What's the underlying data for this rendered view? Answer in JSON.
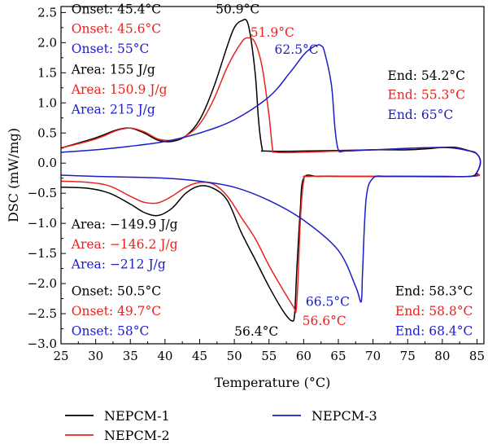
{
  "chart_data": {
    "type": "line",
    "title": "",
    "xlabel": "Temperature (°C)",
    "ylabel": "DSC (mW/mg)",
    "xlim": [
      25,
      86
    ],
    "ylim": [
      -3.0,
      2.6
    ],
    "x_ticks": [
      25,
      30,
      35,
      40,
      45,
      50,
      55,
      60,
      65,
      70,
      75,
      80,
      85
    ],
    "y_ticks": [
      -3.0,
      -2.5,
      -2.0,
      -1.5,
      -1.0,
      -0.5,
      0.0,
      0.5,
      1.0,
      1.5,
      2.0,
      2.5
    ],
    "x_tick_labels": [
      "25",
      "30",
      "35",
      "40",
      "45",
      "50",
      "55",
      "60",
      "65",
      "70",
      "75",
      "80",
      "85"
    ],
    "y_tick_labels": [
      "−3.0",
      "−2.5",
      "−2.0",
      "−1.5",
      "−1.0",
      "−0.5",
      "0.0",
      "0.5",
      "1.0",
      "1.5",
      "2.0",
      "2.5"
    ],
    "grid": false,
    "legend_position": "bottom",
    "series": [
      {
        "name": "NEPCM-1",
        "color": "#000000",
        "points": [
          [
            25,
            0.25
          ],
          [
            30,
            0.42
          ],
          [
            33,
            0.55
          ],
          [
            35,
            0.58
          ],
          [
            37,
            0.5
          ],
          [
            39,
            0.38
          ],
          [
            41,
            0.36
          ],
          [
            43,
            0.45
          ],
          [
            45,
            0.72
          ],
          [
            47,
            1.25
          ],
          [
            49,
            1.95
          ],
          [
            50,
            2.25
          ],
          [
            51,
            2.36
          ],
          [
            52,
            2.3
          ],
          [
            53,
            1.5
          ],
          [
            53.5,
            0.7
          ],
          [
            54,
            0.25
          ],
          [
            54.5,
            0.2
          ],
          [
            60,
            0.2
          ],
          [
            70,
            0.22
          ],
          [
            75,
            0.22
          ],
          [
            78,
            0.24
          ],
          [
            80,
            0.26
          ],
          [
            82,
            0.26
          ],
          [
            84,
            0.2
          ],
          [
            85,
            0.15
          ],
          [
            85.5,
            0.02
          ],
          [
            85,
            -0.15
          ],
          [
            84,
            -0.22
          ],
          [
            80,
            -0.22
          ],
          [
            70,
            -0.22
          ],
          [
            65,
            -0.22
          ],
          [
            62,
            -0.22
          ],
          [
            60,
            -0.25
          ],
          [
            59.5,
            -0.8
          ],
          [
            59,
            -1.8
          ],
          [
            58.7,
            -2.5
          ],
          [
            58.3,
            -2.62
          ],
          [
            57,
            -2.45
          ],
          [
            55,
            -2.05
          ],
          [
            53,
            -1.6
          ],
          [
            51,
            -1.15
          ],
          [
            49,
            -0.62
          ],
          [
            47,
            -0.42
          ],
          [
            45,
            -0.38
          ],
          [
            43,
            -0.5
          ],
          [
            41,
            -0.75
          ],
          [
            39,
            -0.87
          ],
          [
            37,
            -0.82
          ],
          [
            35,
            -0.68
          ],
          [
            32,
            -0.5
          ],
          [
            29,
            -0.42
          ],
          [
            25,
            -0.4
          ]
        ]
      },
      {
        "name": "NEPCM-2",
        "color": "#e8221e",
        "points": [
          [
            25,
            0.25
          ],
          [
            30,
            0.4
          ],
          [
            33,
            0.54
          ],
          [
            35,
            0.58
          ],
          [
            37,
            0.52
          ],
          [
            39,
            0.4
          ],
          [
            41,
            0.38
          ],
          [
            43,
            0.45
          ],
          [
            45,
            0.65
          ],
          [
            47,
            1.05
          ],
          [
            49,
            1.6
          ],
          [
            51,
            2.0
          ],
          [
            52,
            2.08
          ],
          [
            53,
            2.0
          ],
          [
            54,
            1.6
          ],
          [
            55,
            0.8
          ],
          [
            55.5,
            0.25
          ],
          [
            56,
            0.18
          ],
          [
            60,
            0.18
          ],
          [
            70,
            0.22
          ],
          [
            80,
            0.26
          ],
          [
            84,
            0.2
          ],
          [
            85,
            0.15
          ],
          [
            85.5,
            0.02
          ],
          [
            85,
            -0.15
          ],
          [
            84,
            -0.22
          ],
          [
            70,
            -0.22
          ],
          [
            61,
            -0.22
          ],
          [
            60,
            -0.3
          ],
          [
            59.5,
            -1.0
          ],
          [
            59.2,
            -1.9
          ],
          [
            58.9,
            -2.45
          ],
          [
            58.6,
            -2.4
          ],
          [
            57,
            -2.1
          ],
          [
            55,
            -1.7
          ],
          [
            53,
            -1.25
          ],
          [
            51,
            -0.9
          ],
          [
            49,
            -0.55
          ],
          [
            47,
            -0.35
          ],
          [
            45,
            -0.32
          ],
          [
            43,
            -0.4
          ],
          [
            41,
            -0.55
          ],
          [
            39,
            -0.66
          ],
          [
            37,
            -0.65
          ],
          [
            35,
            -0.55
          ],
          [
            32,
            -0.38
          ],
          [
            29,
            -0.32
          ],
          [
            25,
            -0.3
          ]
        ]
      },
      {
        "name": "NEPCM-3",
        "color": "#1c1cc8",
        "points": [
          [
            25,
            0.18
          ],
          [
            30,
            0.22
          ],
          [
            35,
            0.28
          ],
          [
            40,
            0.36
          ],
          [
            45,
            0.5
          ],
          [
            50,
            0.72
          ],
          [
            55,
            1.1
          ],
          [
            58,
            1.5
          ],
          [
            60,
            1.8
          ],
          [
            61,
            1.9
          ],
          [
            62,
            1.96
          ],
          [
            62.5,
            1.95
          ],
          [
            63,
            1.85
          ],
          [
            64,
            1.3
          ],
          [
            64.5,
            0.6
          ],
          [
            65,
            0.22
          ],
          [
            66,
            0.2
          ],
          [
            70,
            0.22
          ],
          [
            80,
            0.26
          ],
          [
            84,
            0.2
          ],
          [
            85,
            0.15
          ],
          [
            85.5,
            0.02
          ],
          [
            85,
            -0.15
          ],
          [
            84,
            -0.22
          ],
          [
            75,
            -0.22
          ],
          [
            72,
            -0.22
          ],
          [
            70,
            -0.25
          ],
          [
            69,
            -0.6
          ],
          [
            68.5,
            -1.8
          ],
          [
            68.3,
            -2.3
          ],
          [
            67.5,
            -2.05
          ],
          [
            65,
            -1.45
          ],
          [
            60,
            -0.95
          ],
          [
            55,
            -0.62
          ],
          [
            50,
            -0.4
          ],
          [
            45,
            -0.3
          ],
          [
            40,
            -0.25
          ],
          [
            30,
            -0.22
          ],
          [
            25,
            -0.2
          ]
        ]
      }
    ],
    "annotations": [
      {
        "text": "Onset: 45.4°C",
        "color": "#000000",
        "x": 26.5,
        "y": 2.55
      },
      {
        "text": "Onset: 45.6°C",
        "color": "#e8221e",
        "x": 26.5,
        "y": 2.23
      },
      {
        "text": "Onset: 55°C",
        "color": "#1c1cc8",
        "x": 26.5,
        "y": 1.9
      },
      {
        "text": "Area: 155 J/g",
        "color": "#000000",
        "x": 26.5,
        "y": 1.55
      },
      {
        "text": "Area: 150.9 J/g",
        "color": "#e8221e",
        "x": 26.5,
        "y": 1.22
      },
      {
        "text": "Area: 215 J/g",
        "color": "#1c1cc8",
        "x": 26.5,
        "y": 0.89
      },
      {
        "text": "50.9°C",
        "color": "#000000",
        "x": 47.3,
        "y": 2.55
      },
      {
        "text": "51.9°C",
        "color": "#e8221e",
        "x": 52.3,
        "y": 2.17
      },
      {
        "text": "62.5°C",
        "color": "#1c1cc8",
        "x": 55.8,
        "y": 1.88
      },
      {
        "text": "End: 54.2°C",
        "color": "#000000",
        "x": 72.1,
        "y": 1.45
      },
      {
        "text": "End: 55.3°C",
        "color": "#e8221e",
        "x": 72.1,
        "y": 1.13
      },
      {
        "text": "End: 65°C",
        "color": "#1c1cc8",
        "x": 72.1,
        "y": 0.8
      },
      {
        "text": "Area: −149.9 J/g",
        "color": "#000000",
        "x": 26.5,
        "y": -1.02
      },
      {
        "text": "Area: −146.2 J/g",
        "color": "#e8221e",
        "x": 26.5,
        "y": -1.35
      },
      {
        "text": "Area: −212 J/g",
        "color": "#1c1cc8",
        "x": 26.5,
        "y": -1.68
      },
      {
        "text": "Onset: 50.5°C",
        "color": "#000000",
        "x": 26.5,
        "y": -2.13
      },
      {
        "text": "Onset: 49.7°C",
        "color": "#e8221e",
        "x": 26.5,
        "y": -2.46
      },
      {
        "text": "Onset: 58°C",
        "color": "#1c1cc8",
        "x": 26.5,
        "y": -2.79
      },
      {
        "text": "56.4°C",
        "color": "#000000",
        "x": 50.0,
        "y": -2.8
      },
      {
        "text": "56.6°C",
        "color": "#e8221e",
        "x": 59.8,
        "y": -2.62
      },
      {
        "text": "66.5°C",
        "color": "#1c1cc8",
        "x": 60.3,
        "y": -2.3
      },
      {
        "text": "End: 58.3°C",
        "color": "#000000",
        "x": 73.2,
        "y": -2.13
      },
      {
        "text": "End: 58.8°C",
        "color": "#e8221e",
        "x": 73.2,
        "y": -2.46
      },
      {
        "text": "End: 68.4°C",
        "color": "#1c1cc8",
        "x": 73.2,
        "y": -2.79
      }
    ]
  }
}
